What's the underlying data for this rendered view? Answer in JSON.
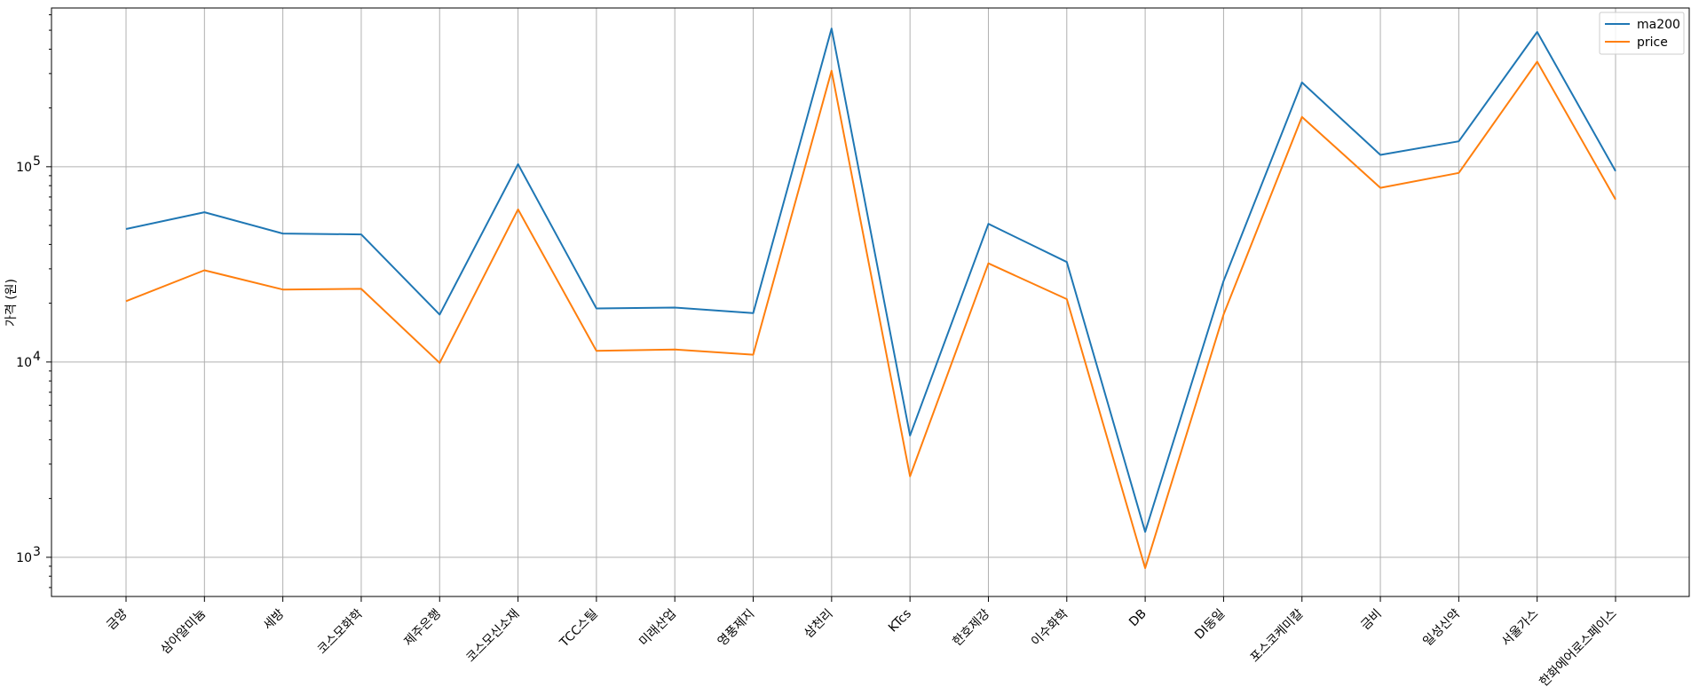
{
  "chart_data": {
    "type": "line",
    "title": "",
    "xlabel": "",
    "ylabel": "가격 (원)",
    "yscale": "log",
    "ylim": [
      630,
      650000
    ],
    "yticks": [
      {
        "value": 1000,
        "base": "10",
        "exp": "3"
      },
      {
        "value": 10000,
        "base": "10",
        "exp": "4"
      },
      {
        "value": 100000,
        "base": "10",
        "exp": "5"
      }
    ],
    "grid": true,
    "legend_position": "top-right",
    "categories": [
      "금양",
      "삼아알미늄",
      "세방",
      "코스모화학",
      "제주은행",
      "코스모신소재",
      "TCC스틸",
      "미래산업",
      "영풍제지",
      "삼천리",
      "KTcs",
      "한호제강",
      "이수화학",
      "DB",
      "DI동일",
      "포스코케미칼",
      "금비",
      "일성신약",
      "서울가스",
      "한화에어로스페이스"
    ],
    "series": [
      {
        "name": "ma200",
        "color": "#1f77b4",
        "values": [
          48000,
          58500,
          45500,
          45000,
          17500,
          103000,
          18800,
          19000,
          17800,
          510000,
          4200,
          51000,
          32500,
          1350,
          26000,
          270000,
          115000,
          135000,
          490000,
          95000
        ]
      },
      {
        "name": "price",
        "color": "#ff7f0e",
        "values": [
          20500,
          29500,
          23500,
          23700,
          9900,
          60500,
          11400,
          11600,
          10900,
          310000,
          2600,
          32000,
          21000,
          880,
          17500,
          180000,
          78000,
          93000,
          345000,
          68000
        ]
      }
    ]
  }
}
